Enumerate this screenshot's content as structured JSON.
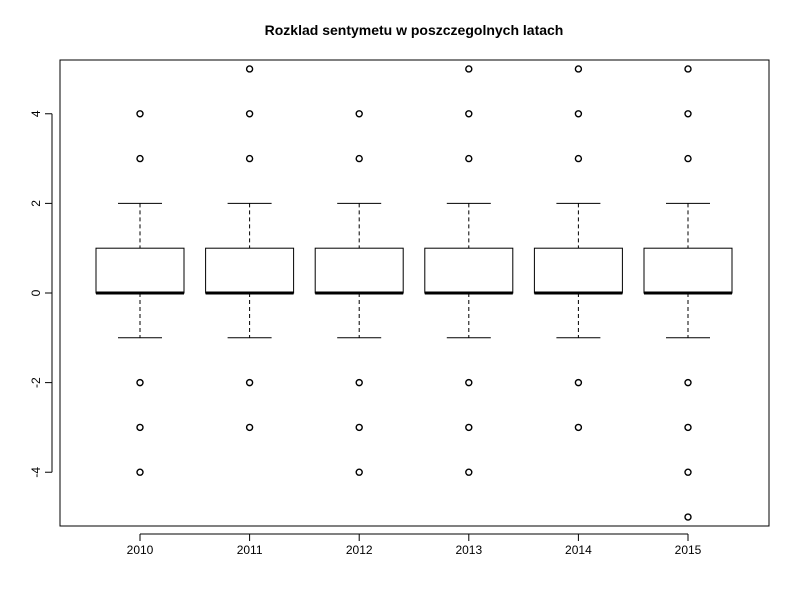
{
  "chart_data": {
    "type": "boxplot",
    "title": "Rozklad sentymetu w poszczegolnych latach",
    "xlabel": "",
    "ylabel": "",
    "ylim": [
      -5.2,
      5.2
    ],
    "yticks": [
      -4,
      -2,
      0,
      2,
      4
    ],
    "grid": false,
    "categories": [
      "2010",
      "2011",
      "2012",
      "2013",
      "2014",
      "2015"
    ],
    "boxes": [
      {
        "category": "2010",
        "whisker_low": -1,
        "q1": 0,
        "median": 0,
        "q3": 1,
        "whisker_high": 2,
        "outliers": [
          3,
          4,
          -2,
          -3,
          -4
        ]
      },
      {
        "category": "2011",
        "whisker_low": -1,
        "q1": 0,
        "median": 0,
        "q3": 1,
        "whisker_high": 2,
        "outliers": [
          3,
          4,
          5,
          -2,
          -3
        ]
      },
      {
        "category": "2012",
        "whisker_low": -1,
        "q1": 0,
        "median": 0,
        "q3": 1,
        "whisker_high": 2,
        "outliers": [
          3,
          4,
          -2,
          -3,
          -4
        ]
      },
      {
        "category": "2013",
        "whisker_low": -1,
        "q1": 0,
        "median": 0,
        "q3": 1,
        "whisker_high": 2,
        "outliers": [
          3,
          4,
          5,
          -2,
          -3,
          -4
        ]
      },
      {
        "category": "2014",
        "whisker_low": -1,
        "q1": 0,
        "median": 0,
        "q3": 1,
        "whisker_high": 2,
        "outliers": [
          3,
          4,
          5,
          -2,
          -3
        ]
      },
      {
        "category": "2015",
        "whisker_low": -1,
        "q1": 0,
        "median": 0,
        "q3": 1,
        "whisker_high": 2,
        "outliers": [
          3,
          4,
          5,
          -2,
          -3,
          -4,
          -5
        ]
      }
    ],
    "colors": {
      "box_fill": "#ffffff",
      "stroke": "#000000"
    }
  }
}
